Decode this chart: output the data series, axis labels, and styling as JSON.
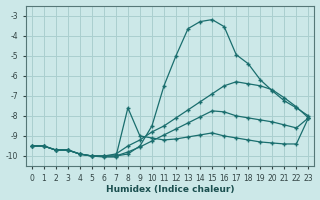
{
  "xlabel": "Humidex (Indice chaleur)",
  "background_color": "#cce8e8",
  "grid_color": "#aacfcf",
  "line_color": "#1a6e6e",
  "xlim_min": -0.5,
  "xlim_max": 23.5,
  "ylim_min": -10.5,
  "ylim_max": -2.5,
  "yticks": [
    -10,
    -9,
    -8,
    -7,
    -6,
    -5,
    -4,
    -3
  ],
  "xticks": [
    0,
    1,
    2,
    3,
    4,
    5,
    6,
    7,
    8,
    9,
    10,
    11,
    12,
    13,
    14,
    15,
    16,
    17,
    18,
    19,
    20,
    21,
    22,
    23
  ],
  "series": [
    {
      "x": [
        0,
        1,
        2,
        3,
        4,
        5,
        6,
        7,
        8,
        9,
        10,
        11,
        12,
        13,
        14,
        15,
        16,
        17,
        18,
        19,
        20,
        21,
        22,
        23
      ],
      "y": [
        -9.5,
        -9.5,
        -9.7,
        -9.7,
        -9.9,
        -10.0,
        -10.0,
        -10.0,
        -9.9,
        -9.5,
        -8.5,
        -6.5,
        -5.0,
        -3.65,
        -3.3,
        -3.2,
        -3.55,
        -4.95,
        -5.4,
        -6.2,
        -6.75,
        -7.25,
        -7.6,
        -8.0
      ]
    },
    {
      "x": [
        0,
        1,
        2,
        3,
        4,
        5,
        6,
        7,
        8,
        9,
        10,
        11,
        12,
        13,
        14,
        15,
        16,
        17,
        18,
        19,
        20,
        21,
        22,
        23
      ],
      "y": [
        -9.5,
        -9.5,
        -9.7,
        -9.7,
        -9.9,
        -10.0,
        -10.0,
        -9.9,
        -9.5,
        -9.2,
        -8.8,
        -8.5,
        -8.1,
        -7.7,
        -7.3,
        -6.9,
        -6.5,
        -6.3,
        -6.4,
        -6.5,
        -6.7,
        -7.1,
        -7.55,
        -8.1
      ]
    },
    {
      "x": [
        0,
        1,
        2,
        3,
        4,
        5,
        6,
        7,
        8,
        9,
        10,
        11,
        12,
        13,
        14,
        15,
        16,
        17,
        18,
        19,
        20,
        21,
        22,
        23
      ],
      "y": [
        -9.5,
        -9.5,
        -9.7,
        -9.7,
        -9.9,
        -10.0,
        -10.0,
        -10.0,
        -9.8,
        -9.55,
        -9.25,
        -8.95,
        -8.65,
        -8.35,
        -8.05,
        -7.75,
        -7.8,
        -8.0,
        -8.1,
        -8.2,
        -8.3,
        -8.45,
        -8.6,
        -8.1
      ]
    },
    {
      "x": [
        0,
        1,
        2,
        3,
        4,
        5,
        6,
        7,
        8,
        9,
        10,
        11,
        12,
        13,
        14,
        15,
        16,
        17,
        18,
        19,
        20,
        21,
        22,
        23
      ],
      "y": [
        -9.5,
        -9.5,
        -9.7,
        -9.7,
        -9.9,
        -10.0,
        -10.05,
        -10.05,
        -7.6,
        -9.0,
        -9.1,
        -9.2,
        -9.15,
        -9.05,
        -8.95,
        -8.85,
        -9.0,
        -9.1,
        -9.2,
        -9.3,
        -9.35,
        -9.4,
        -9.4,
        -8.1
      ]
    }
  ]
}
